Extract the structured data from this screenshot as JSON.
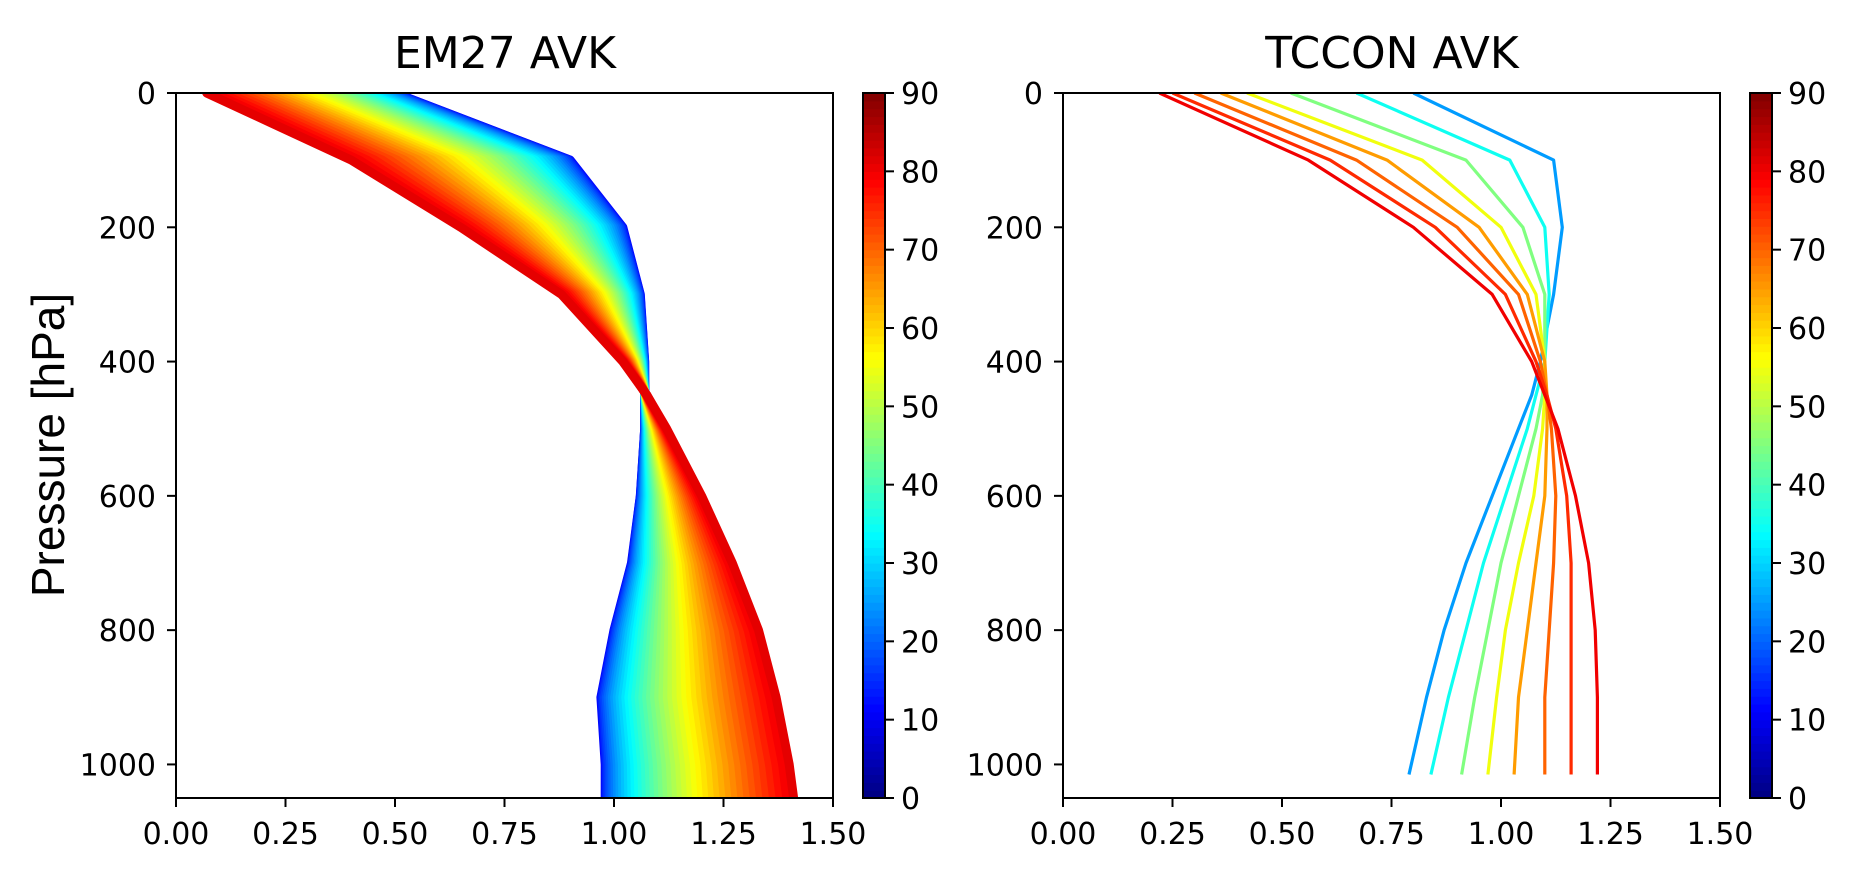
{
  "chart_data": [
    {
      "type": "line",
      "title": "EM27 AVK",
      "xlabel": "",
      "ylabel": "Pressure [hPa]",
      "xlim": [
        0,
        1.5
      ],
      "ylim": [
        1050,
        0
      ],
      "xticks": [
        0.0,
        0.25,
        0.5,
        0.75,
        1.0,
        1.25,
        1.5
      ],
      "xtick_labels": [
        "0.00",
        "0.25",
        "0.50",
        "0.75",
        "1.00",
        "1.25",
        "1.50"
      ],
      "yticks": [
        0,
        200,
        400,
        600,
        800,
        1000
      ],
      "ytick_labels": [
        "0",
        "200",
        "400",
        "600",
        "800",
        "1000"
      ],
      "colorbar": {
        "colormap": "jet",
        "range": [
          0,
          90
        ],
        "ticks": [
          0,
          10,
          20,
          30,
          40,
          50,
          60,
          70,
          80,
          90
        ],
        "tick_labels": [
          "0",
          "10",
          "20",
          "30",
          "40",
          "50",
          "60",
          "70",
          "80",
          "90"
        ]
      },
      "series_angles": [
        0,
        2,
        4,
        6,
        8,
        10,
        12,
        14,
        16,
        18,
        20,
        22,
        24,
        26,
        28,
        30,
        32,
        34,
        36,
        38,
        40,
        42,
        44,
        46,
        48,
        50,
        52,
        54,
        56,
        58,
        60,
        62,
        64,
        66,
        68,
        70,
        72,
        74,
        76,
        78,
        80,
        82,
        84,
        86,
        88
      ],
      "pressure": [
        0,
        100,
        200,
        300,
        400,
        450,
        500,
        600,
        700,
        800,
        900,
        1000,
        1050
      ],
      "avk_low_angle": [
        0.5,
        0.9,
        1.02,
        1.06,
        1.07,
        1.07,
        1.07,
        1.06,
        1.04,
        1.0,
        0.97,
        0.98,
        0.98
      ],
      "avk_high_angle": [
        0.07,
        0.4,
        0.65,
        0.88,
        1.02,
        1.075,
        1.12,
        1.2,
        1.27,
        1.33,
        1.37,
        1.4,
        1.41
      ]
    },
    {
      "type": "line",
      "title": "TCCON AVK",
      "xlabel": "",
      "ylabel": "",
      "xlim": [
        0,
        1.5
      ],
      "ylim": [
        1050,
        0
      ],
      "xticks": [
        0.0,
        0.25,
        0.5,
        0.75,
        1.0,
        1.25,
        1.5
      ],
      "xtick_labels": [
        "0.00",
        "0.25",
        "0.50",
        "0.75",
        "1.00",
        "1.25",
        "1.50"
      ],
      "yticks": [
        0,
        200,
        400,
        600,
        800,
        1000
      ],
      "ytick_labels": [
        "0",
        "200",
        "400",
        "600",
        "800",
        "1000"
      ],
      "colorbar": {
        "colormap": "jet",
        "range": [
          0,
          90
        ],
        "ticks": [
          0,
          10,
          20,
          30,
          40,
          50,
          60,
          70,
          80,
          90
        ],
        "tick_labels": [
          "0",
          "10",
          "20",
          "30",
          "40",
          "50",
          "60",
          "70",
          "80",
          "90"
        ]
      },
      "pressure": [
        0,
        100,
        200,
        300,
        400,
        450,
        500,
        600,
        700,
        800,
        900,
        1015
      ],
      "series": [
        {
          "name": "25",
          "values": [
            0.8,
            1.12,
            1.14,
            1.12,
            1.09,
            1.07,
            1.04,
            0.98,
            0.92,
            0.87,
            0.83,
            0.79
          ]
        },
        {
          "name": "35",
          "values": [
            0.67,
            1.02,
            1.1,
            1.11,
            1.1,
            1.08,
            1.06,
            1.01,
            0.96,
            0.92,
            0.88,
            0.84
          ]
        },
        {
          "name": "45",
          "values": [
            0.52,
            0.92,
            1.05,
            1.1,
            1.1,
            1.095,
            1.08,
            1.04,
            1.0,
            0.97,
            0.94,
            0.91
          ]
        },
        {
          "name": "55",
          "values": [
            0.42,
            0.82,
            1.0,
            1.08,
            1.1,
            1.1,
            1.095,
            1.075,
            1.04,
            1.01,
            0.99,
            0.97
          ]
        },
        {
          "name": "65",
          "values": [
            0.36,
            0.74,
            0.95,
            1.06,
            1.1,
            1.105,
            1.105,
            1.1,
            1.08,
            1.06,
            1.04,
            1.03
          ]
        },
        {
          "name": "70",
          "values": [
            0.3,
            0.67,
            0.9,
            1.04,
            1.09,
            1.105,
            1.115,
            1.125,
            1.12,
            1.11,
            1.1,
            1.1
          ]
        },
        {
          "name": "75",
          "values": [
            0.25,
            0.61,
            0.85,
            1.01,
            1.08,
            1.105,
            1.125,
            1.15,
            1.16,
            1.16,
            1.16,
            1.16
          ]
        },
        {
          "name": "80",
          "values": [
            0.22,
            0.56,
            0.8,
            0.98,
            1.07,
            1.1,
            1.13,
            1.17,
            1.2,
            1.215,
            1.22,
            1.22
          ]
        }
      ]
    }
  ]
}
